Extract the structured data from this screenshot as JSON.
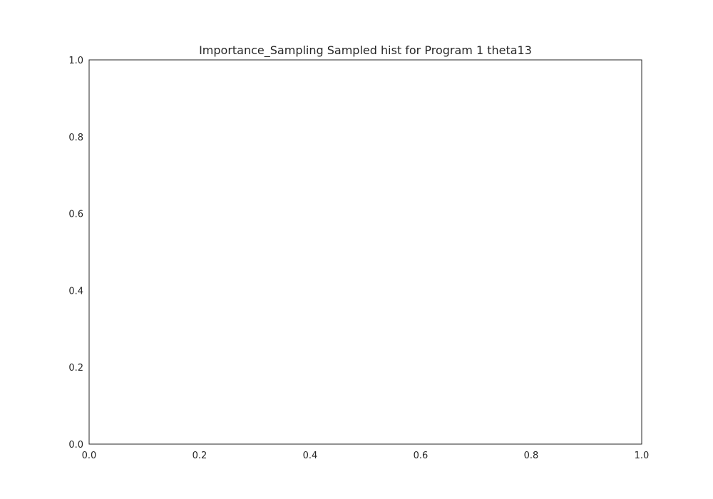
{
  "chart_data": {
    "type": "bar",
    "title": "Importance_Sampling Sampled hist for Program 1 theta13",
    "xlabel": "",
    "ylabel": "",
    "xlim": [
      0.0,
      1.0
    ],
    "ylim": [
      0.0,
      1.0
    ],
    "x_ticks": [
      "0.0",
      "0.2",
      "0.4",
      "0.6",
      "0.8",
      "1.0"
    ],
    "y_ticks": [
      "0.0",
      "0.2",
      "0.4",
      "0.6",
      "0.8",
      "1.0"
    ],
    "series": [],
    "grid": false,
    "legend": "none",
    "colors": {
      "axes": "#262626",
      "background": "#ffffff"
    }
  }
}
